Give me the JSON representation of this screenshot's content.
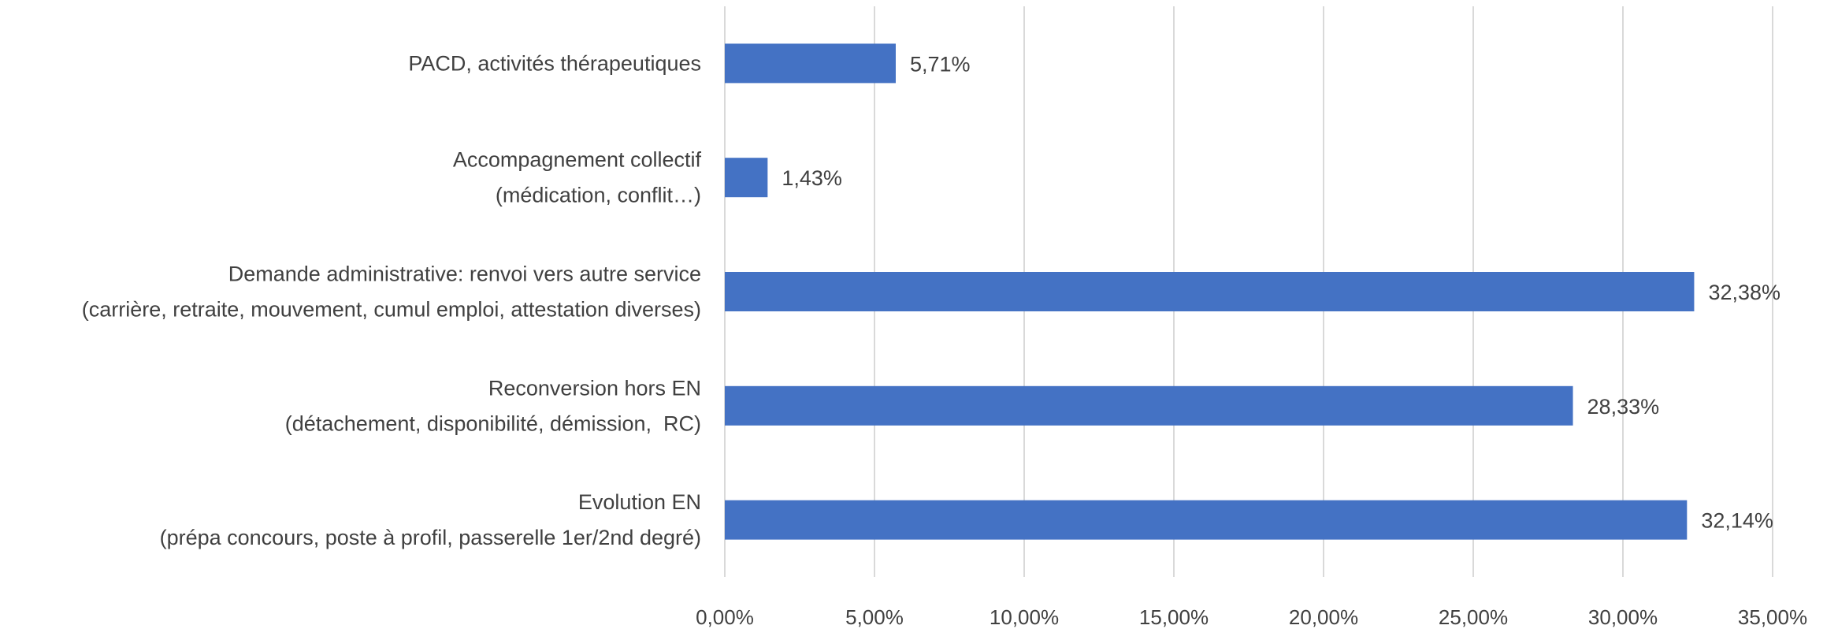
{
  "chart_data": {
    "type": "bar",
    "orientation": "horizontal",
    "categories": [
      [
        "PACD, activités thérapeutiques"
      ],
      [
        "Accompagnement collectif",
        "(médication, conflit…)"
      ],
      [
        "Demande administrative: renvoi vers autre service",
        "(carrière, retraite, mouvement, cumul emploi, attestation diverses)"
      ],
      [
        "Reconversion hors EN",
        "(détachement, disponibilité, démission,  RC)"
      ],
      [
        "Evolution EN",
        "(prépa concours, poste à profil, passerelle 1er/2nd degré)"
      ]
    ],
    "values": [
      5.71,
      1.43,
      32.38,
      28.33,
      32.14
    ],
    "value_labels": [
      "5,71%",
      "1,43%",
      "32,38%",
      "28,33%",
      "32,14%"
    ],
    "xlim": [
      0,
      35
    ],
    "xticks": [
      0,
      5,
      10,
      15,
      20,
      25,
      30,
      35
    ],
    "xtick_labels": [
      "0,00%",
      "5,00%",
      "10,00%",
      "15,00%",
      "20,00%",
      "25,00%",
      "30,00%",
      "35,00%"
    ],
    "title": "",
    "xlabel": "",
    "ylabel": "",
    "grid": "vertical",
    "legend": "none",
    "bar_color": "#4472C4",
    "grid_color": "#D9D9D9",
    "text_color": "#404040"
  }
}
